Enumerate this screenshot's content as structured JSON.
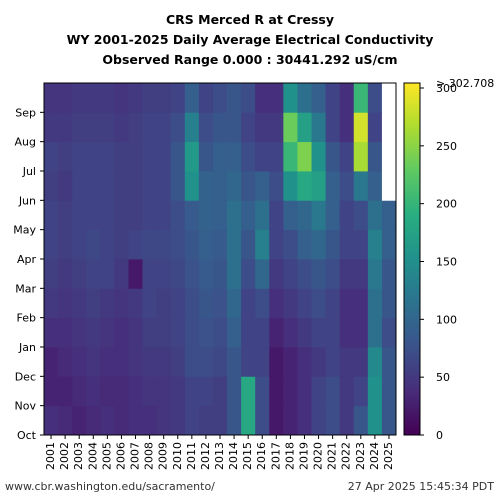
{
  "footer": {
    "source": "www.cbr.washington.edu/sacramento/",
    "timestamp": "27 Apr 2025 15:45:34 PDT"
  },
  "chart_data": {
    "type": "heatmap",
    "title_lines": [
      "CRS Merced R at Cressy",
      "WY 2001-2025 Daily Average Electrical Conductivity",
      "Observed Range 0.000 : 30441.292 uS/cm"
    ],
    "xlabel": "",
    "ylabel": "",
    "x_categories": [
      "2001",
      "2002",
      "2003",
      "2004",
      "2005",
      "2006",
      "2007",
      "2008",
      "2009",
      "2010",
      "2011",
      "2012",
      "2013",
      "2014",
      "2015",
      "2016",
      "2017",
      "2018",
      "2019",
      "2020",
      "2021",
      "2022",
      "2023",
      "2024",
      "2025"
    ],
    "y_categories": [
      "Oct",
      "Nov",
      "Dec",
      "Jan",
      "Feb",
      "Mar",
      "Apr",
      "May",
      "Jun",
      "Jul",
      "Aug",
      "Sep"
    ],
    "colorbar": {
      "colormap": "viridis",
      "range": [
        0,
        300
      ],
      "ticks": [
        "0",
        "50",
        "100",
        "150",
        "200",
        "250",
        "300"
      ],
      "overflow_label": "> 302.708"
    },
    "missing_color": "#ffffff",
    "monthly_mean_uScm": [
      [
        40,
        35,
        30,
        35,
        40,
        35,
        40,
        40,
        45,
        50,
        60,
        55,
        55,
        80,
        180,
        70,
        20,
        30,
        40,
        60,
        70,
        50,
        80,
        150,
        80
      ],
      [
        30,
        30,
        35,
        40,
        35,
        35,
        40,
        45,
        45,
        50,
        60,
        60,
        55,
        80,
        180,
        70,
        20,
        30,
        40,
        60,
        70,
        50,
        60,
        150,
        80
      ],
      [
        30,
        35,
        40,
        45,
        40,
        40,
        45,
        50,
        50,
        55,
        70,
        70,
        65,
        80,
        60,
        60,
        20,
        30,
        40,
        50,
        60,
        50,
        50,
        140,
        80
      ],
      [
        40,
        40,
        45,
        50,
        45,
        40,
        45,
        55,
        55,
        60,
        70,
        75,
        70,
        90,
        60,
        60,
        30,
        40,
        50,
        60,
        60,
        40,
        40,
        110,
        70
      ],
      [
        50,
        45,
        50,
        55,
        50,
        45,
        50,
        60,
        55,
        60,
        70,
        80,
        75,
        100,
        60,
        70,
        40,
        50,
        60,
        70,
        60,
        40,
        40,
        110,
        80
      ],
      [
        55,
        50,
        55,
        60,
        60,
        50,
        20,
        60,
        60,
        65,
        75,
        85,
        80,
        110,
        70,
        100,
        50,
        60,
        70,
        80,
        70,
        50,
        50,
        120,
        80
      ],
      [
        60,
        55,
        60,
        65,
        60,
        55,
        60,
        65,
        65,
        70,
        80,
        90,
        85,
        110,
        80,
        130,
        60,
        70,
        90,
        100,
        80,
        60,
        60,
        130,
        90
      ],
      [
        60,
        55,
        60,
        60,
        60,
        55,
        55,
        60,
        60,
        70,
        85,
        95,
        90,
        110,
        90,
        110,
        60,
        90,
        100,
        120,
        90,
        60,
        70,
        110,
        90
      ],
      [
        55,
        50,
        60,
        60,
        60,
        55,
        55,
        60,
        60,
        80,
        150,
        95,
        90,
        100,
        80,
        90,
        70,
        150,
        180,
        170,
        90,
        70,
        120,
        90,
        null
      ],
      [
        60,
        55,
        60,
        60,
        60,
        55,
        55,
        60,
        60,
        80,
        160,
        80,
        90,
        90,
        70,
        60,
        60,
        200,
        240,
        150,
        80,
        60,
        260,
        80,
        null
      ],
      [
        50,
        50,
        55,
        55,
        55,
        50,
        55,
        60,
        60,
        70,
        130,
        70,
        80,
        80,
        60,
        50,
        50,
        230,
        170,
        120,
        60,
        40,
        280,
        60,
        null
      ],
      [
        45,
        45,
        50,
        50,
        50,
        45,
        50,
        55,
        55,
        60,
        90,
        60,
        70,
        80,
        70,
        40,
        40,
        150,
        110,
        90,
        60,
        40,
        200,
        70,
        null
      ]
    ]
  }
}
